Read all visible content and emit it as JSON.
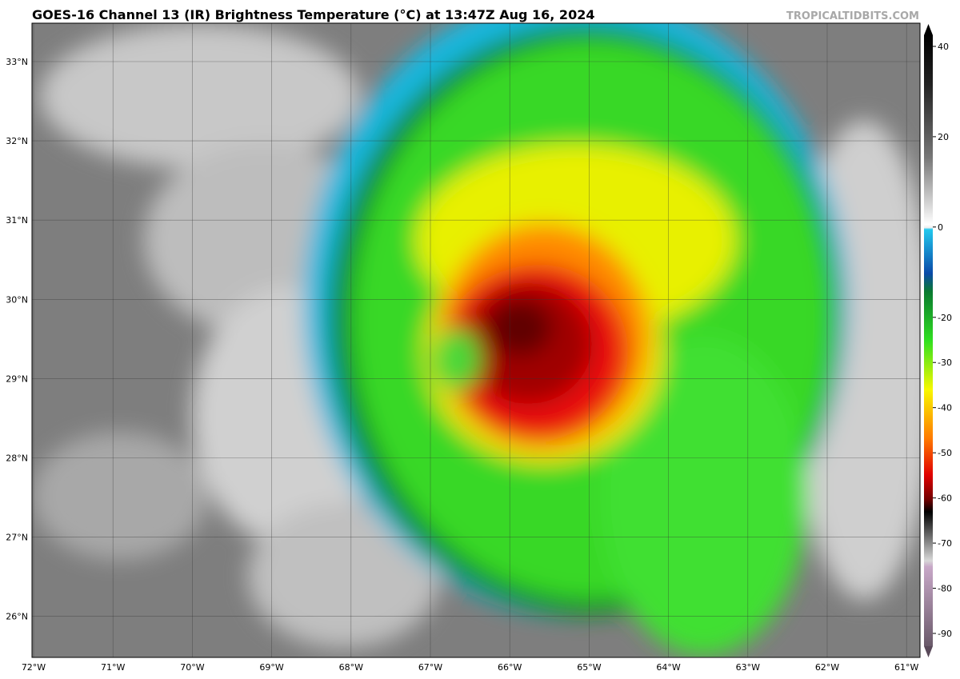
{
  "header": {
    "title": "GOES-16 Channel 13 (IR) Brightness Temperature (°C) at 13:47Z Aug 16, 2024",
    "watermark": "TROPICALTIDBITS.COM"
  },
  "map": {
    "latitude_labels": [
      "33°N",
      "32°N",
      "31°N",
      "30°N",
      "29°N",
      "28°N",
      "27°N",
      "26°N"
    ],
    "longitude_labels": [
      "72°W",
      "71°W",
      "70°W",
      "69°W",
      "68°W",
      "67°W",
      "66°W",
      "65°W",
      "64°W",
      "63°W",
      "62°W",
      "61°W"
    ]
  },
  "colorbar": {
    "range": [
      -90,
      40
    ],
    "ticks": [
      40,
      20,
      0,
      -20,
      -30,
      -40,
      -50,
      -60,
      -70,
      -80,
      -90
    ]
  }
}
